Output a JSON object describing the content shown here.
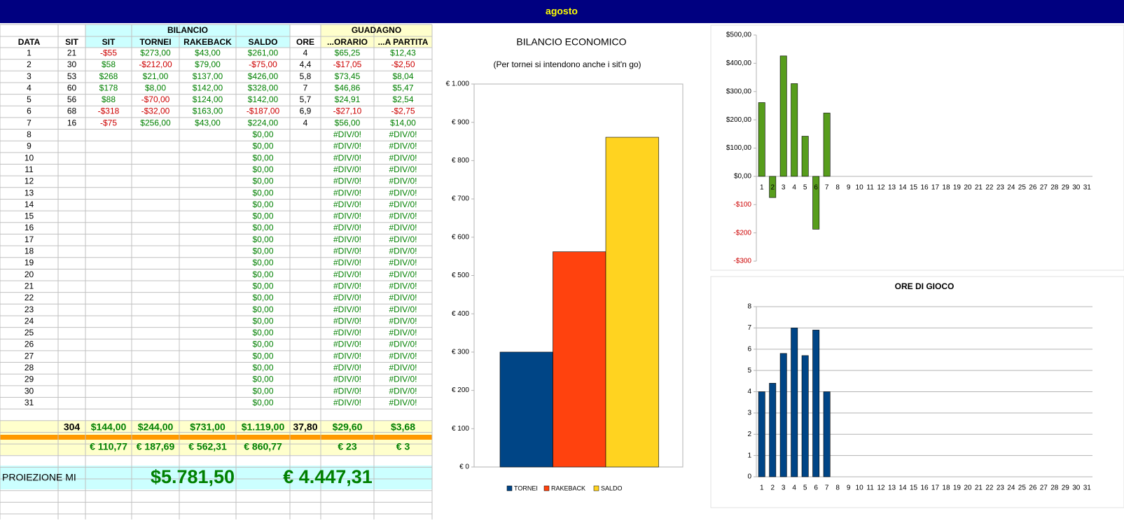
{
  "header": {
    "title": "agosto"
  },
  "table": {
    "group_headers": [
      "BILANCIO",
      "GUADAGNO"
    ],
    "columns": [
      "DATA",
      "SIT",
      "SIT",
      "TORNEI",
      "RAKEBACK",
      "SALDO",
      "ORE",
      "...ORARIO",
      "...A PARTITA"
    ],
    "rows": [
      [
        "1",
        "21",
        "-$55",
        "$273,00",
        "$43,00",
        "$261,00",
        "4",
        "$65,25",
        "$12,43"
      ],
      [
        "2",
        "30",
        "$58",
        "-$212,00",
        "$79,00",
        "-$75,00",
        "4,4",
        "-$17,05",
        "-$2,50"
      ],
      [
        "3",
        "53",
        "$268",
        "$21,00",
        "$137,00",
        "$426,00",
        "5,8",
        "$73,45",
        "$8,04"
      ],
      [
        "4",
        "60",
        "$178",
        "$8,00",
        "$142,00",
        "$328,00",
        "7",
        "$46,86",
        "$5,47"
      ],
      [
        "5",
        "56",
        "$88",
        "-$70,00",
        "$124,00",
        "$142,00",
        "5,7",
        "$24,91",
        "$2,54"
      ],
      [
        "6",
        "68",
        "-$318",
        "-$32,00",
        "$163,00",
        "-$187,00",
        "6,9",
        "-$27,10",
        "-$2,75"
      ],
      [
        "7",
        "16",
        "-$75",
        "$256,00",
        "$43,00",
        "$224,00",
        "4",
        "$56,00",
        "$14,00"
      ],
      [
        "8",
        null,
        null,
        null,
        null,
        "$0,00",
        null,
        "#DIV/0!",
        "#DIV/0!"
      ],
      [
        "9",
        null,
        null,
        null,
        null,
        "$0,00",
        null,
        "#DIV/0!",
        "#DIV/0!"
      ],
      [
        "10",
        null,
        null,
        null,
        null,
        "$0,00",
        null,
        "#DIV/0!",
        "#DIV/0!"
      ],
      [
        "11",
        null,
        null,
        null,
        null,
        "$0,00",
        null,
        "#DIV/0!",
        "#DIV/0!"
      ],
      [
        "12",
        null,
        null,
        null,
        null,
        "$0,00",
        null,
        "#DIV/0!",
        "#DIV/0!"
      ],
      [
        "13",
        null,
        null,
        null,
        null,
        "$0,00",
        null,
        "#DIV/0!",
        "#DIV/0!"
      ],
      [
        "14",
        null,
        null,
        null,
        null,
        "$0,00",
        null,
        "#DIV/0!",
        "#DIV/0!"
      ],
      [
        "15",
        null,
        null,
        null,
        null,
        "$0,00",
        null,
        "#DIV/0!",
        "#DIV/0!"
      ],
      [
        "16",
        null,
        null,
        null,
        null,
        "$0,00",
        null,
        "#DIV/0!",
        "#DIV/0!"
      ],
      [
        "17",
        null,
        null,
        null,
        null,
        "$0,00",
        null,
        "#DIV/0!",
        "#DIV/0!"
      ],
      [
        "18",
        null,
        null,
        null,
        null,
        "$0,00",
        null,
        "#DIV/0!",
        "#DIV/0!"
      ],
      [
        "19",
        null,
        null,
        null,
        null,
        "$0,00",
        null,
        "#DIV/0!",
        "#DIV/0!"
      ],
      [
        "20",
        null,
        null,
        null,
        null,
        "$0,00",
        null,
        "#DIV/0!",
        "#DIV/0!"
      ],
      [
        "21",
        null,
        null,
        null,
        null,
        "$0,00",
        null,
        "#DIV/0!",
        "#DIV/0!"
      ],
      [
        "22",
        null,
        null,
        null,
        null,
        "$0,00",
        null,
        "#DIV/0!",
        "#DIV/0!"
      ],
      [
        "23",
        null,
        null,
        null,
        null,
        "$0,00",
        null,
        "#DIV/0!",
        "#DIV/0!"
      ],
      [
        "24",
        null,
        null,
        null,
        null,
        "$0,00",
        null,
        "#DIV/0!",
        "#DIV/0!"
      ],
      [
        "25",
        null,
        null,
        null,
        null,
        "$0,00",
        null,
        "#DIV/0!",
        "#DIV/0!"
      ],
      [
        "26",
        null,
        null,
        null,
        null,
        "$0,00",
        null,
        "#DIV/0!",
        "#DIV/0!"
      ],
      [
        "27",
        null,
        null,
        null,
        null,
        "$0,00",
        null,
        "#DIV/0!",
        "#DIV/0!"
      ],
      [
        "28",
        null,
        null,
        null,
        null,
        "$0,00",
        null,
        "#DIV/0!",
        "#DIV/0!"
      ],
      [
        "29",
        null,
        null,
        null,
        null,
        "$0,00",
        null,
        "#DIV/0!",
        "#DIV/0!"
      ],
      [
        "30",
        null,
        null,
        null,
        null,
        "$0,00",
        null,
        "#DIV/0!",
        "#DIV/0!"
      ],
      [
        "31",
        null,
        null,
        null,
        null,
        "$0,00",
        null,
        "#DIV/0!",
        "#DIV/0!"
      ]
    ],
    "totals": [
      null,
      "304",
      "$144,00",
      "$244,00",
      "$731,00",
      "$1.119,00",
      "37,80",
      "$29,60",
      "$3,68"
    ],
    "euro": [
      null,
      null,
      "€ 110,77",
      "€ 187,69",
      "€ 562,31",
      "€ 860,77",
      null,
      "€ 23",
      "€ 3"
    ],
    "projection": {
      "label": "PROIEZIONE MI",
      "usd": "$5.781,50",
      "eur": "€ 4.447,31"
    }
  },
  "charts": [
    {
      "type": "bar",
      "title": "BILANCIO ECONOMICO",
      "subtitle": "(Per tornei si intendono anche i sit'n go)",
      "categories": [
        "TORNEI",
        "RAKEBACK",
        "SALDO"
      ],
      "values": [
        300,
        562,
        861
      ],
      "colors": [
        "#004586",
        "#ff420e",
        "#ffd320"
      ],
      "ylim": [
        0,
        1000
      ],
      "yticks": [
        {
          "value": 1000,
          "label": "€ 1.000"
        },
        {
          "value": 900,
          "label": "€ 900"
        },
        {
          "value": 800,
          "label": "€ 800"
        },
        {
          "value": 700,
          "label": "€ 700"
        },
        {
          "value": 600,
          "label": "€ 600"
        },
        {
          "value": 500,
          "label": "€ 500"
        },
        {
          "value": 400,
          "label": "€ 400"
        },
        {
          "value": 300,
          "label": "€ 300"
        },
        {
          "value": 200,
          "label": "€ 200"
        },
        {
          "value": 100,
          "label": "€ 100"
        },
        {
          "value": 0,
          "label": "€ 0"
        }
      ],
      "legend": "bottom",
      "grid": false
    },
    {
      "type": "bar",
      "categories": [
        1,
        2,
        3,
        4,
        5,
        6,
        7,
        8,
        9,
        10,
        11,
        12,
        13,
        14,
        15,
        16,
        17,
        18,
        19,
        20,
        21,
        22,
        23,
        24,
        25,
        26,
        27,
        28,
        29,
        30,
        31
      ],
      "values": [
        261,
        -75,
        426,
        328,
        142,
        -187,
        224,
        0,
        0,
        0,
        0,
        0,
        0,
        0,
        0,
        0,
        0,
        0,
        0,
        0,
        0,
        0,
        0,
        0,
        0,
        0,
        0,
        0,
        0,
        0,
        0
      ],
      "color": "#579d1c",
      "ylim": [
        -300,
        500
      ],
      "yticks": [
        {
          "value": 500,
          "label": "$500,00"
        },
        {
          "value": 400,
          "label": "$400,00"
        },
        {
          "value": 300,
          "label": "$300,00"
        },
        {
          "value": 200,
          "label": "$200,00"
        },
        {
          "value": 100,
          "label": "$100,00"
        },
        {
          "value": 0,
          "label": "$0,00"
        },
        {
          "value": -100,
          "label": "-$100"
        },
        {
          "value": -200,
          "label": "-$200"
        },
        {
          "value": -300,
          "label": "-$300"
        }
      ],
      "grid": false
    },
    {
      "type": "bar",
      "title": "ORE DI GIOCO",
      "categories": [
        1,
        2,
        3,
        4,
        5,
        6,
        7,
        8,
        9,
        10,
        11,
        12,
        13,
        14,
        15,
        16,
        17,
        18,
        19,
        20,
        21,
        22,
        23,
        24,
        25,
        26,
        27,
        28,
        29,
        30,
        31
      ],
      "values": [
        4,
        4.4,
        5.8,
        7,
        5.7,
        6.9,
        4,
        0,
        0,
        0,
        0,
        0,
        0,
        0,
        0,
        0,
        0,
        0,
        0,
        0,
        0,
        0,
        0,
        0,
        0,
        0,
        0,
        0,
        0,
        0,
        0
      ],
      "color": "#004586",
      "ylim": [
        0,
        8
      ],
      "yticks": [
        0,
        1,
        2,
        3,
        4,
        5,
        6,
        7,
        8
      ],
      "grid": true
    }
  ]
}
